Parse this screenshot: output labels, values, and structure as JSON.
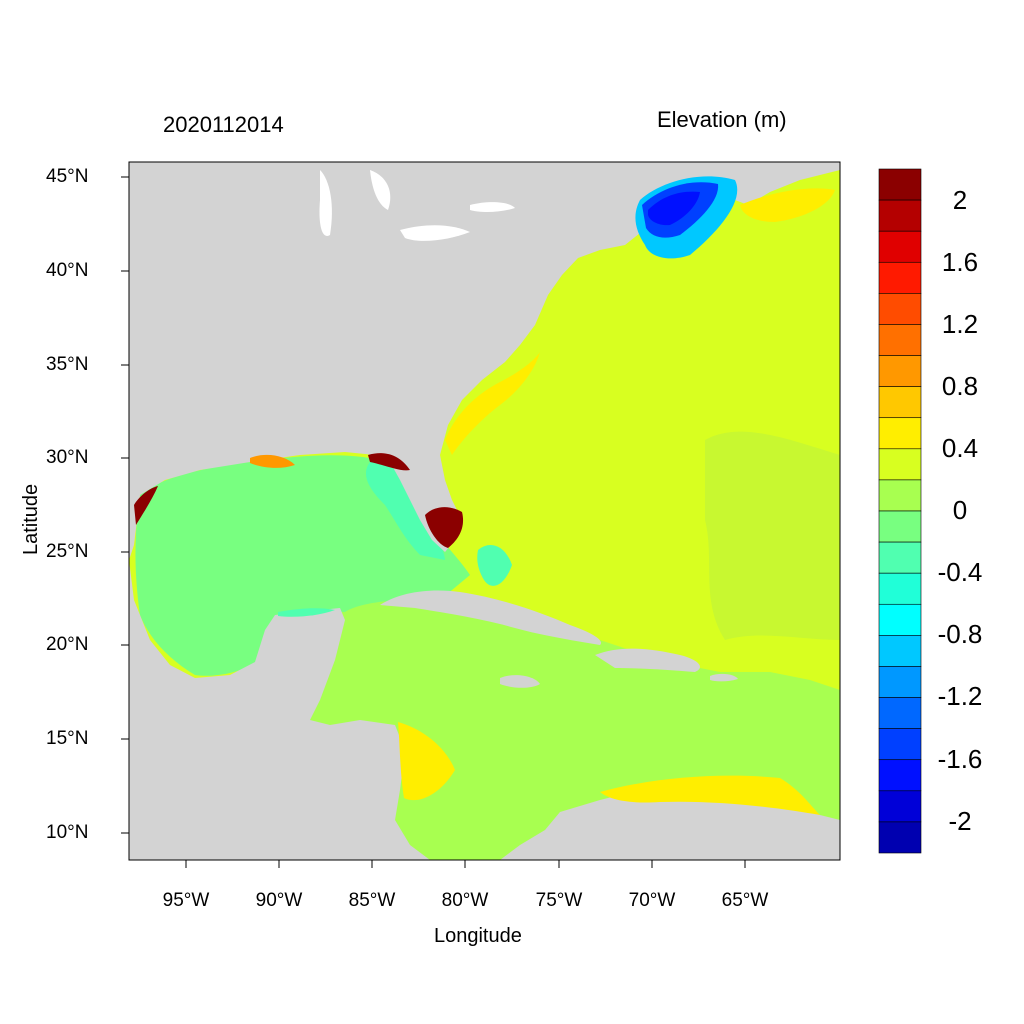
{
  "plot": {
    "left_title": "2020112014",
    "right_title": "Elevation (m)",
    "x_axis_label": "Longitude",
    "y_axis_label": "Latitude"
  },
  "lat_ticks": [
    "45°N",
    "40°N",
    "35°N",
    "30°N",
    "25°N",
    "20°N",
    "15°N",
    "10°N"
  ],
  "lon_ticks": [
    "95°W",
    "90°W",
    "85°W",
    "80°W",
    "75°W",
    "70°W",
    "65°W"
  ],
  "colorbar": {
    "labels": [
      "2",
      "1.6",
      "1.2",
      "0.8",
      "0.4",
      "0",
      "-0.4",
      "-0.8",
      "-1.2",
      "-1.6",
      "-2"
    ],
    "colors": [
      "#8b0000",
      "#b40000",
      "#e00000",
      "#ff1a00",
      "#ff4c00",
      "#ff7000",
      "#ff9800",
      "#ffc800",
      "#ffee00",
      "#d8ff20",
      "#a8ff50",
      "#78ff80",
      "#50ffb0",
      "#20ffd8",
      "#00ffff",
      "#00c8ff",
      "#0098ff",
      "#0068ff",
      "#0040ff",
      "#0010ff",
      "#0000d8",
      "#0000b0"
    ]
  },
  "map_colors": {
    "land": "#d3d3d3",
    "atlantic": "#d8ff20",
    "caribbean": "#a8ff50",
    "gulf": "#78ff80",
    "surge_high": "#8b0000",
    "surge_low": "#0040ff"
  }
}
